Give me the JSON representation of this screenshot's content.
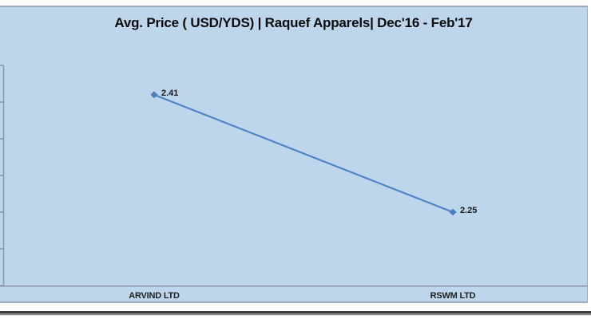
{
  "chart_data": {
    "type": "line",
    "title": "Avg. Price ( USD/YDS) | Raquef Apparels| Dec'16 - Feb'17",
    "categories": [
      "ARVIND LTD",
      "RSWM LTD"
    ],
    "values": [
      2.41,
      2.25
    ],
    "point_labels": [
      "2.41",
      "2.25"
    ],
    "xlabel": "",
    "ylabel": "",
    "ylim": [
      2.15,
      2.45
    ],
    "ytick_step": 0.05,
    "ytick_labels_visible": false,
    "grid": false,
    "legend": "none",
    "marker": "diamond",
    "colors": {
      "plot_bg": "#BDD6EC",
      "line": "#5285C6",
      "marker_fill": "#4A7EBB",
      "axis": "#8A96A4",
      "title_text": "#0A0A0A",
      "label_text": "#1A1A1A"
    }
  }
}
